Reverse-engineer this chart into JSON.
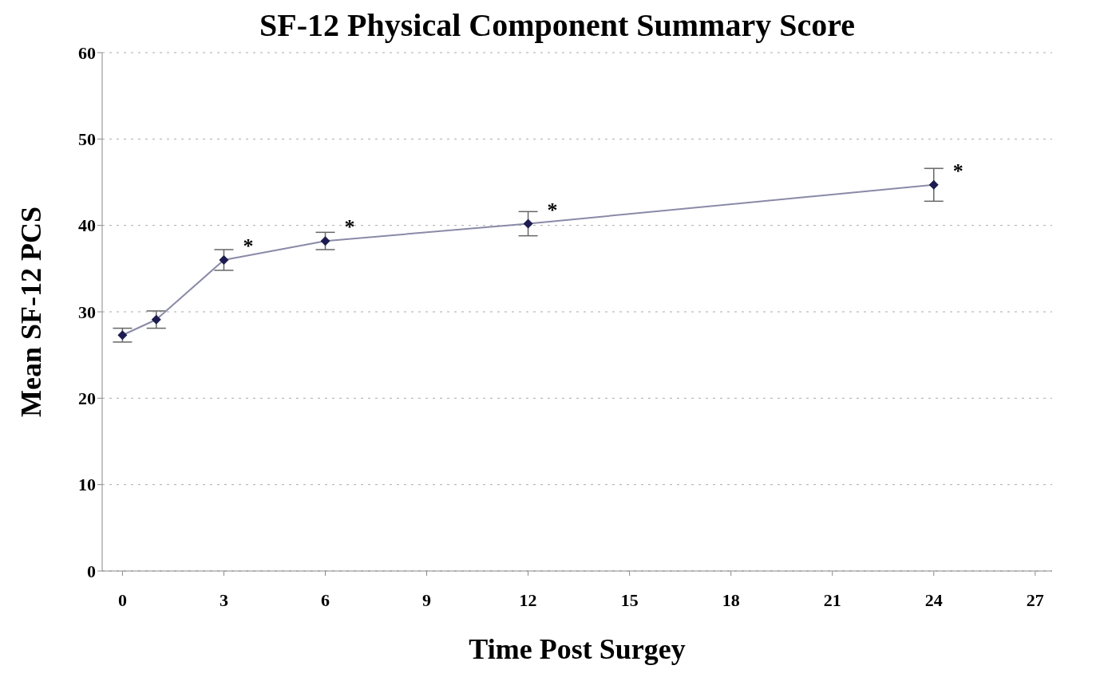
{
  "chart_data": {
    "type": "line",
    "title": "SF-12 Physical Component Summary Score",
    "xlabel": "Time Post Surgey",
    "ylabel": "Mean  SF-12  PCS",
    "x": [
      0,
      1,
      3,
      6,
      12,
      24
    ],
    "series": [
      {
        "color": "#1c1c50",
        "values": [
          27.3,
          29.1,
          36.0,
          38.2,
          40.2,
          44.7
        ],
        "errors": [
          0.8,
          1.0,
          1.2,
          1.0,
          1.4,
          1.9
        ]
      }
    ],
    "xlim": [
      -0.6,
      27.5
    ],
    "xticks": [
      0,
      3,
      6,
      9,
      12,
      15,
      18,
      21,
      24,
      27
    ],
    "ylim": [
      0,
      60
    ],
    "yticks": [
      0,
      10,
      20,
      30,
      40,
      50,
      60
    ],
    "grid": "y",
    "marker": "diamond",
    "line_style": "solid",
    "annotations": [
      {
        "text": "*",
        "x": 3,
        "y": 36.0
      },
      {
        "text": "*",
        "x": 6,
        "y": 38.2
      },
      {
        "text": "*",
        "x": 12,
        "y": 40.2
      },
      {
        "text": "*",
        "x": 24,
        "y": 44.7
      }
    ]
  }
}
